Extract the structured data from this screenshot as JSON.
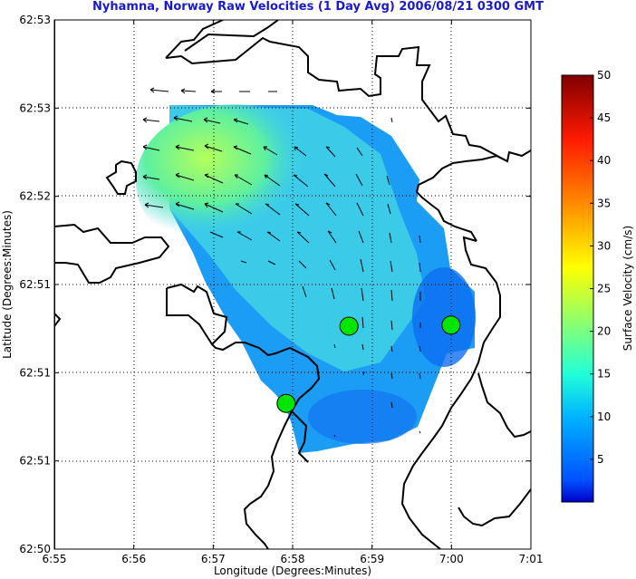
{
  "chart_data": {
    "type": "heatmap",
    "title": "Nyhamna, Norway Raw Velocities (1 Day Avg) 2006/08/21 0300 GMT",
    "xlabel": "Longitude (Degrees:Minutes)",
    "ylabel": "Latitude (Degrees:Minutes)",
    "x_ticks": [
      "6:55",
      "6:56",
      "6:57",
      "6:58",
      "6:59",
      "7:00",
      "7:01"
    ],
    "y_ticks": [
      "62:50",
      "62:51",
      "62:51",
      "62:51",
      "62:52",
      "62:53",
      "62:53"
    ],
    "grid": true,
    "colorbar": {
      "label": "Surface Velocity (cm/s)",
      "min": 0,
      "max": 50,
      "ticks": [
        "5",
        "10",
        "15",
        "20",
        "25",
        "30",
        "35",
        "40",
        "45",
        "50"
      ]
    },
    "stations": [
      {
        "lon": 6.9785,
        "lat": 62.8544
      },
      {
        "lon": 6.9653,
        "lat": 62.8471
      },
      {
        "lon": 6.9999,
        "lat": 62.8545
      }
    ]
  }
}
